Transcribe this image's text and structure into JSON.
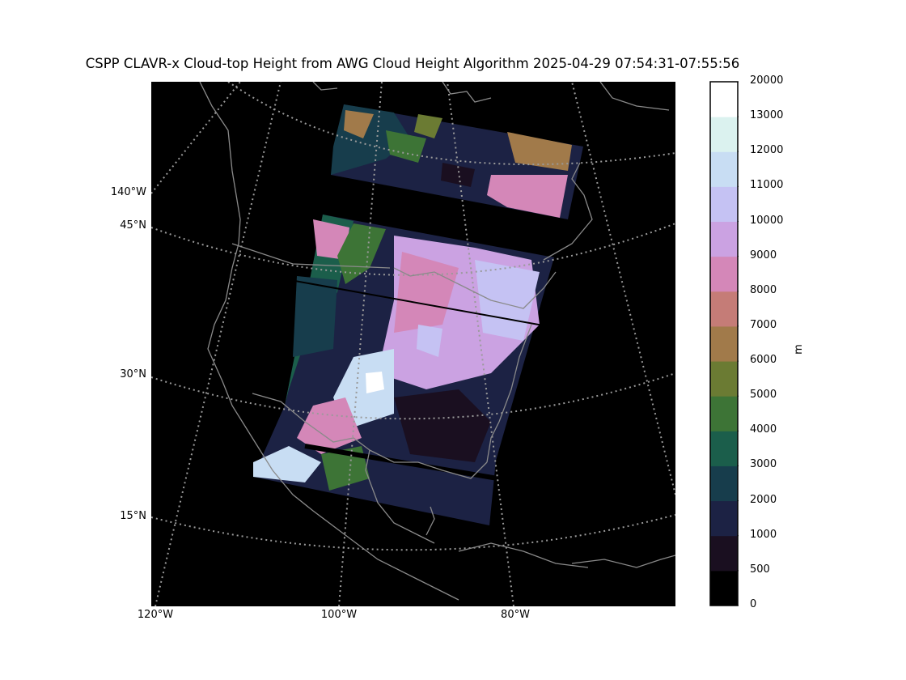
{
  "title": "CSPP CLAVR-x Cloud-top Height from AWG Cloud Height Algorithm 2025-04-29 07:54:31-07:55:56",
  "map": {
    "lat_labels": [
      "45°N",
      "30°N",
      "15°N"
    ],
    "lon_labels_left": [
      "140°W"
    ],
    "lon_labels_bottom": [
      "120°W",
      "100°W",
      "80°W"
    ],
    "background_color": "#000000",
    "coastline_color": "#8a8a8a",
    "graticule_color": "#9a9a9a"
  },
  "colorbar": {
    "unit": "m",
    "levels": [
      "0",
      "500",
      "1000",
      "2000",
      "3000",
      "4000",
      "5000",
      "6000",
      "7000",
      "8000",
      "9000",
      "10000",
      "11000",
      "12000",
      "13000",
      "20000"
    ],
    "colors": [
      "#000000",
      "#1a0f20",
      "#1c2244",
      "#173d4c",
      "#1b5e4b",
      "#3d7436",
      "#6b7b33",
      "#a17a4a",
      "#c57c77",
      "#d487b8",
      "#cba2e2",
      "#c5c2f3",
      "#c8ddf3",
      "#dbf2ef",
      "#ffffff"
    ]
  }
}
